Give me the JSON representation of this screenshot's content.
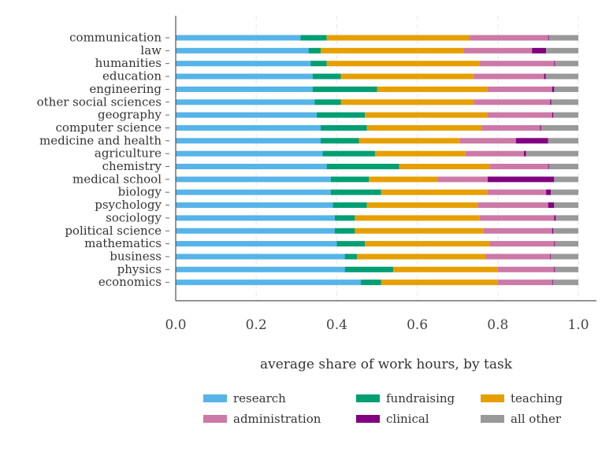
{
  "chart_data": {
    "type": "bar",
    "orientation": "horizontal",
    "stacked": true,
    "title": "",
    "xlabel": "average share of work hours, by task",
    "ylabel": "",
    "xlim": [
      0.0,
      1.0
    ],
    "x_ticks": [
      "0.0",
      "0.2",
      "0.4",
      "0.6",
      "0.8",
      "1.0"
    ],
    "grid": true,
    "legend_position": "bottom",
    "categories": [
      "communication",
      "law",
      "humanities",
      "education",
      "engineering",
      "other social sciences",
      "geography",
      "computer science",
      "medicine and health",
      "agriculture",
      "chemistry",
      "medical school",
      "biology",
      "psychology",
      "sociology",
      "political science",
      "mathematics",
      "business",
      "physics",
      "economics"
    ],
    "series": [
      {
        "name": "research",
        "color": "#56b4e9",
        "values": [
          0.31,
          0.33,
          0.335,
          0.34,
          0.34,
          0.345,
          0.35,
          0.36,
          0.36,
          0.365,
          0.375,
          0.385,
          0.385,
          0.39,
          0.395,
          0.395,
          0.4,
          0.42,
          0.42,
          0.46
        ]
      },
      {
        "name": "fundraising",
        "color": "#009e73",
        "values": [
          0.065,
          0.03,
          0.04,
          0.07,
          0.16,
          0.065,
          0.12,
          0.115,
          0.095,
          0.13,
          0.18,
          0.095,
          0.125,
          0.085,
          0.05,
          0.05,
          0.07,
          0.03,
          0.12,
          0.05
        ]
      },
      {
        "name": "teaching",
        "color": "#e69f00",
        "values": [
          0.355,
          0.355,
          0.38,
          0.33,
          0.275,
          0.33,
          0.305,
          0.285,
          0.25,
          0.225,
          0.225,
          0.17,
          0.265,
          0.275,
          0.31,
          0.32,
          0.31,
          0.32,
          0.26,
          0.29
        ]
      },
      {
        "name": "administration",
        "color": "#cc79a7",
        "values": [
          0.195,
          0.17,
          0.185,
          0.175,
          0.16,
          0.19,
          0.16,
          0.145,
          0.14,
          0.145,
          0.145,
          0.125,
          0.145,
          0.175,
          0.185,
          0.17,
          0.16,
          0.16,
          0.14,
          0.135
        ]
      },
      {
        "name": "clinical",
        "color": "#800080",
        "values": [
          0.002,
          0.035,
          0.002,
          0.004,
          0.005,
          0.003,
          0.003,
          0.002,
          0.08,
          0.005,
          0.002,
          0.165,
          0.012,
          0.015,
          0.004,
          0.003,
          0.002,
          0.002,
          0.002,
          0.002
        ]
      },
      {
        "name": "all other",
        "color": "#999999",
        "values": [
          0.073,
          0.08,
          0.058,
          0.081,
          0.06,
          0.067,
          0.062,
          0.093,
          0.075,
          0.13,
          0.073,
          0.06,
          0.068,
          0.06,
          0.056,
          0.062,
          0.058,
          0.068,
          0.058,
          0.063
        ]
      }
    ]
  }
}
